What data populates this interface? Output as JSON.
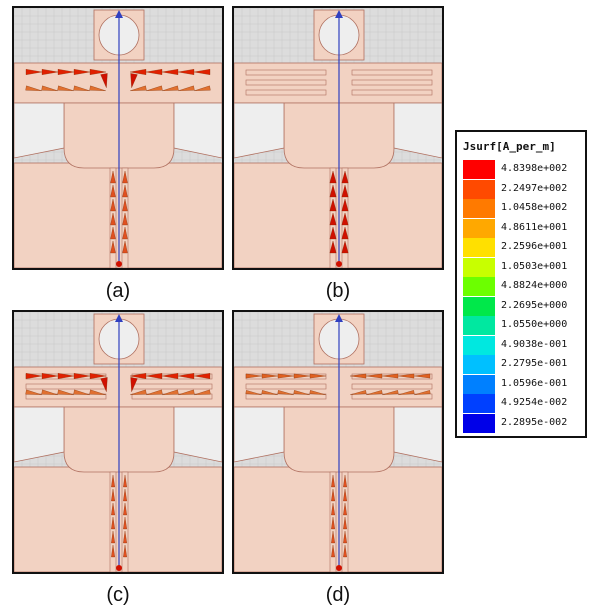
{
  "panels": [
    {
      "caption": "(a)"
    },
    {
      "caption": "(b)"
    },
    {
      "caption": "(c)"
    },
    {
      "caption": "(d)"
    }
  ],
  "legend": {
    "title": "Jsurf[A_per_m]",
    "levels": [
      {
        "value": "4.8398e+002",
        "color": "#ff0000"
      },
      {
        "value": "2.2497e+002",
        "color": "#ff4a00"
      },
      {
        "value": "1.0458e+002",
        "color": "#ff7a00"
      },
      {
        "value": "4.8611e+001",
        "color": "#ffa800"
      },
      {
        "value": "2.2596e+001",
        "color": "#ffe000"
      },
      {
        "value": "1.0503e+001",
        "color": "#c8ff00"
      },
      {
        "value": "4.8824e+000",
        "color": "#6cff00"
      },
      {
        "value": "2.2695e+000",
        "color": "#00e84a"
      },
      {
        "value": "1.0550e+000",
        "color": "#00e8a0"
      },
      {
        "value": "4.9038e-001",
        "color": "#00e8e0"
      },
      {
        "value": "2.2795e-001",
        "color": "#00c0ff"
      },
      {
        "value": "1.0596e-001",
        "color": "#0080ff"
      },
      {
        "value": "4.9254e-002",
        "color": "#0040ff"
      },
      {
        "value": "2.2895e-002",
        "color": "#0000e8"
      }
    ]
  }
}
